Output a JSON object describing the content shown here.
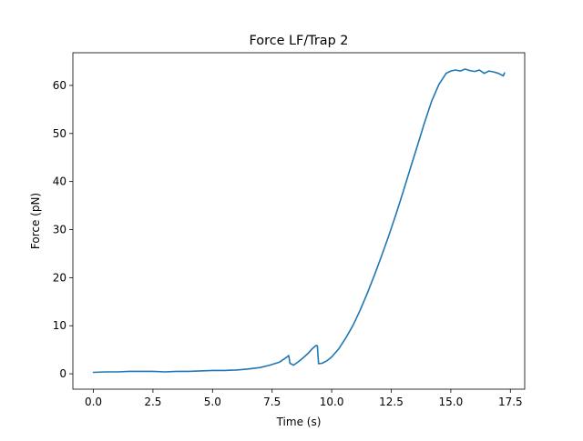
{
  "chart_data": {
    "type": "line",
    "title": "Force LF/Trap 2",
    "xlabel": "Time (s)",
    "ylabel": "Force (pN)",
    "xlim": [
      -0.86,
      18.1
    ],
    "ylim": [
      -3.2,
      66.8
    ],
    "xticks": [
      0.0,
      2.5,
      5.0,
      7.5,
      10.0,
      12.5,
      15.0,
      17.5
    ],
    "xtick_labels": [
      "0.0",
      "2.5",
      "5.0",
      "7.5",
      "10.0",
      "12.5",
      "15.0",
      "17.5"
    ],
    "yticks": [
      0,
      10,
      20,
      30,
      40,
      50,
      60
    ],
    "ytick_labels": [
      "0",
      "10",
      "20",
      "30",
      "40",
      "50",
      "60"
    ],
    "grid": false,
    "legend": "none",
    "series": [
      {
        "color": "#1f77b4",
        "x": [
          0.0,
          0.5,
          1.0,
          1.5,
          2.0,
          2.5,
          3.0,
          3.5,
          4.0,
          4.5,
          5.0,
          5.5,
          6.0,
          6.5,
          7.0,
          7.4,
          7.8,
          8.1,
          8.2,
          8.25,
          8.4,
          8.6,
          8.8,
          9.0,
          9.2,
          9.35,
          9.4,
          9.45,
          9.6,
          9.8,
          10.0,
          10.3,
          10.6,
          10.9,
          11.2,
          11.5,
          11.8,
          12.1,
          12.4,
          12.7,
          13.0,
          13.3,
          13.6,
          13.9,
          14.2,
          14.5,
          14.8,
          15.0,
          15.2,
          15.4,
          15.6,
          15.8,
          16.0,
          16.2,
          16.4,
          16.6,
          16.8,
          17.0,
          17.2,
          17.25
        ],
        "y": [
          0.3,
          0.4,
          0.4,
          0.5,
          0.5,
          0.5,
          0.4,
          0.5,
          0.5,
          0.6,
          0.7,
          0.7,
          0.8,
          1.0,
          1.3,
          1.8,
          2.4,
          3.4,
          3.8,
          2.2,
          1.8,
          2.5,
          3.3,
          4.2,
          5.3,
          5.9,
          5.8,
          2.1,
          2.2,
          2.7,
          3.5,
          5.2,
          7.5,
          10.1,
          13.3,
          16.8,
          20.6,
          24.6,
          28.8,
          33.2,
          37.9,
          42.7,
          47.5,
          52.3,
          56.8,
          60.2,
          62.5,
          63.0,
          63.2,
          63.0,
          63.4,
          63.1,
          62.9,
          63.2,
          62.5,
          63.0,
          62.8,
          62.5,
          62.0,
          62.6
        ]
      }
    ]
  }
}
